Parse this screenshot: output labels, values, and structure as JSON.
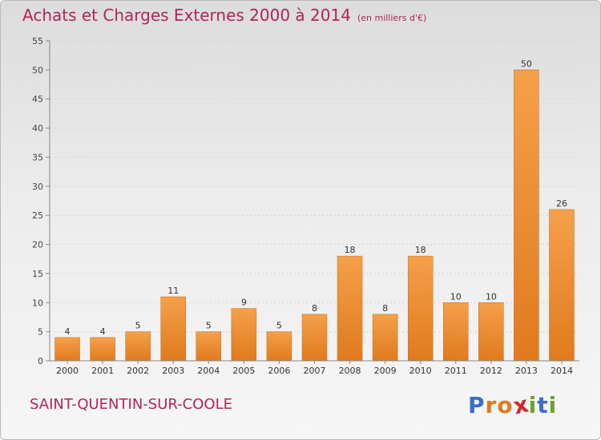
{
  "header": {
    "title": "Achats et Charges Externes 2000 à 2014",
    "unit": "(en milliers d'€)"
  },
  "footer": {
    "commune": "SAINT-QUENTIN-SUR-COOLE",
    "logo_letters": [
      "P",
      "r",
      "o",
      "x",
      "i",
      "t",
      "i"
    ],
    "logo_colors": [
      "#3a6fc4",
      "#e07a1a",
      "#e07a1a",
      "#d02a2a",
      "#6aa42a",
      "#3a6fc4",
      "#6aa42a"
    ]
  },
  "chart_data": {
    "type": "bar",
    "categories": [
      "2000",
      "2001",
      "2002",
      "2003",
      "2004",
      "2005",
      "2006",
      "2007",
      "2008",
      "2009",
      "2010",
      "2011",
      "2012",
      "2013",
      "2014"
    ],
    "values": [
      4,
      4,
      5,
      11,
      5,
      9,
      5,
      8,
      18,
      8,
      18,
      10,
      10,
      50,
      26
    ],
    "ylim": [
      0,
      55
    ],
    "yticks": [
      0,
      5,
      10,
      15,
      20,
      25,
      30,
      35,
      40,
      45,
      50,
      55
    ],
    "grid": true,
    "bar_color_top": "#f5a04a",
    "bar_color_bottom": "#e07a1e",
    "axis_color": "#888888"
  }
}
